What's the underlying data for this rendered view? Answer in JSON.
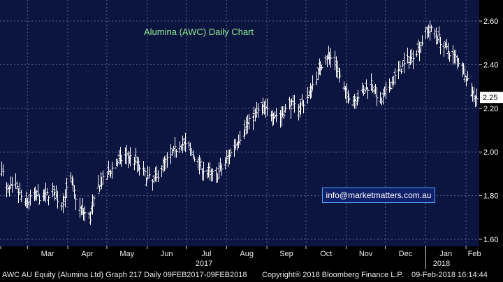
{
  "chart_data": {
    "type": "ohlc",
    "title": "Alumina (AWC) Daily Chart",
    "ticker_label": "2.25",
    "y_ticks": [
      "2.60",
      "2.40",
      "2.20",
      "2.00",
      "1.80",
      "1.60"
    ],
    "ylim": [
      1.58,
      2.67
    ],
    "x_months": [
      "Mar",
      "Apr",
      "May",
      "Jun",
      "Jul",
      "Aug",
      "Sep",
      "Oct",
      "Nov",
      "Dec",
      "Jan",
      "Feb"
    ],
    "x_years": [
      "2017",
      "2018"
    ],
    "grid": true,
    "series": [
      {
        "name": "",
        "x": [
          "2017-02-09",
          "2017-02-13",
          "2017-02-20",
          "2017-02-27",
          "2017-03-06",
          "2017-03-13",
          "2017-03-20",
          "2017-03-27",
          "2017-04-03",
          "2017-04-10",
          "2017-04-18",
          "2017-04-24",
          "2017-05-01",
          "2017-05-08",
          "2017-05-15",
          "2017-05-22",
          "2017-05-29",
          "2017-06-05",
          "2017-06-13",
          "2017-06-19",
          "2017-06-26",
          "2017-07-03",
          "2017-07-10",
          "2017-07-17",
          "2017-07-24",
          "2017-07-31",
          "2017-08-07",
          "2017-08-14",
          "2017-08-21",
          "2017-08-28",
          "2017-09-04",
          "2017-09-11",
          "2017-09-18",
          "2017-09-25",
          "2017-10-02",
          "2017-10-09",
          "2017-10-16",
          "2017-10-23",
          "2017-10-30",
          "2017-11-06",
          "2017-11-13",
          "2017-11-20",
          "2017-11-27",
          "2017-12-04",
          "2017-12-11",
          "2017-12-18",
          "2017-12-27",
          "2018-01-02",
          "2018-01-08",
          "2018-01-15",
          "2018-01-22",
          "2018-01-29",
          "2018-02-05",
          "2018-02-09"
        ],
        "y": [
          1.93,
          1.82,
          1.84,
          1.76,
          1.8,
          1.79,
          1.82,
          1.76,
          1.87,
          1.74,
          1.7,
          1.84,
          1.89,
          1.95,
          1.98,
          1.97,
          1.9,
          1.86,
          1.94,
          1.98,
          2.04,
          2.02,
          1.95,
          1.9,
          1.89,
          1.95,
          2.03,
          2.1,
          2.16,
          2.2,
          2.18,
          2.16,
          2.22,
          2.2,
          2.25,
          2.35,
          2.44,
          2.42,
          2.28,
          2.24,
          2.27,
          2.32,
          2.22,
          2.3,
          2.37,
          2.42,
          2.48,
          2.56,
          2.55,
          2.48,
          2.44,
          2.4,
          2.28,
          2.25
        ]
      }
    ]
  },
  "footer": {
    "left": "AWC AU Equity (Alumina Ltd) Graph 217  Daily 09FEB2017-09FEB2018",
    "middle": "Copyright® 2018 Bloomberg Finance L.P.",
    "right": "09-Feb-2018 16:14:44"
  },
  "watermark": "info@marketmatters.com.au"
}
